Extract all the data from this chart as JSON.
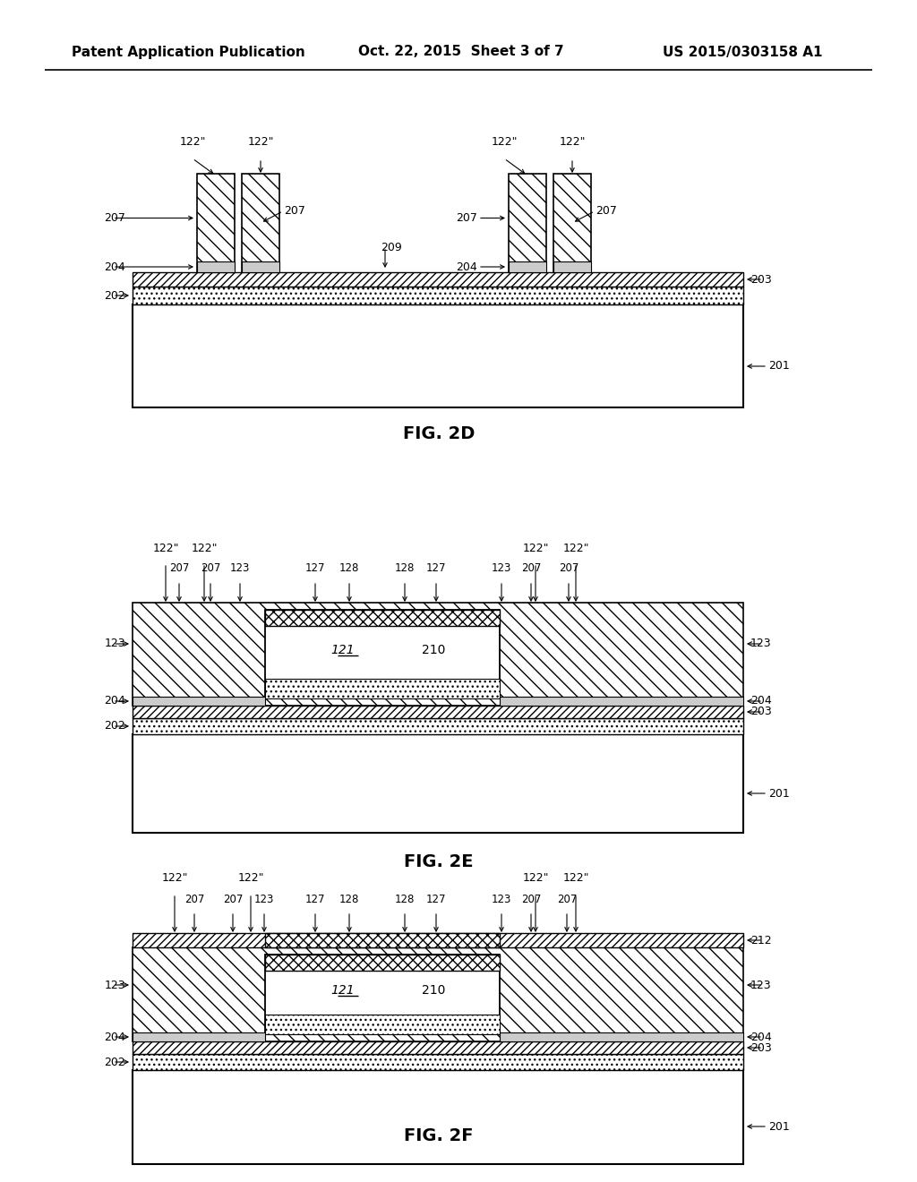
{
  "title_left": "Patent Application Publication",
  "title_center": "Oct. 22, 2015  Sheet 3 of 7",
  "title_right": "US 2015/0303158 A1",
  "fig2d_caption": "FIG. 2D",
  "fig2e_caption": "FIG. 2E",
  "fig2f_caption": "FIG. 2F",
  "bg_color": "#ffffff",
  "line_color": "#000000"
}
